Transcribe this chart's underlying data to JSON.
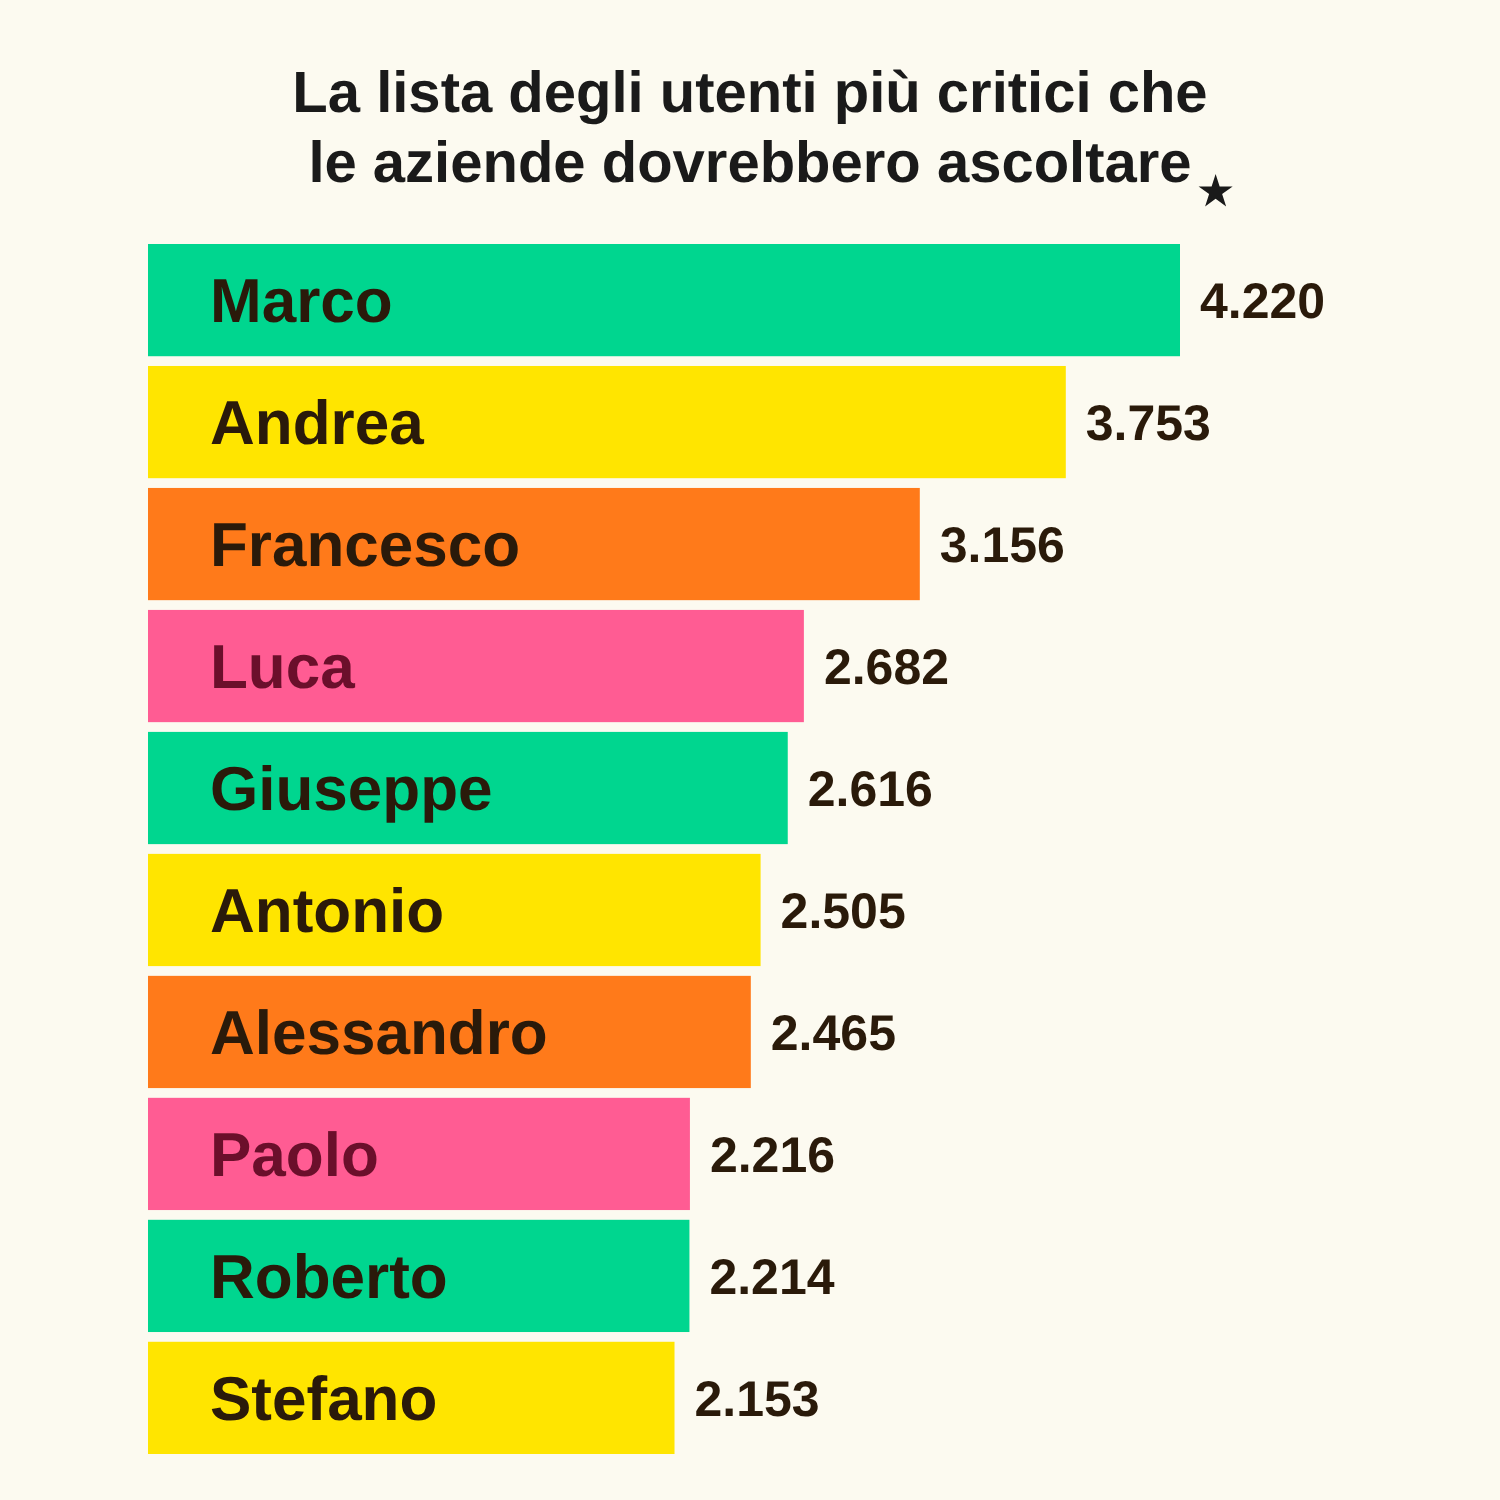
{
  "chart_data": {
    "type": "bar",
    "orientation": "horizontal",
    "title": "La lista degli utenti più critici che le aziende dovrebbero ascoltare",
    "categories": [
      "Marco",
      "Andrea",
      "Francesco",
      "Luca",
      "Giuseppe",
      "Antonio",
      "Alessandro",
      "Paolo",
      "Roberto",
      "Stefano"
    ],
    "values": [
      4220,
      3753,
      3156,
      2682,
      2616,
      2505,
      2465,
      2216,
      2214,
      2153
    ],
    "value_labels": [
      "4.220",
      "3.753",
      "3.156",
      "2.682",
      "2.616",
      "2.505",
      "2.465",
      "2.216",
      "2.214",
      "2.153"
    ],
    "colors": [
      "#00d68f",
      "#ffe500",
      "#ff7a1a",
      "#ff5c93",
      "#00d68f",
      "#ffe500",
      "#ff7a1a",
      "#ff5c93",
      "#00d68f",
      "#ffe500"
    ],
    "xlim": [
      0,
      4220
    ]
  }
}
